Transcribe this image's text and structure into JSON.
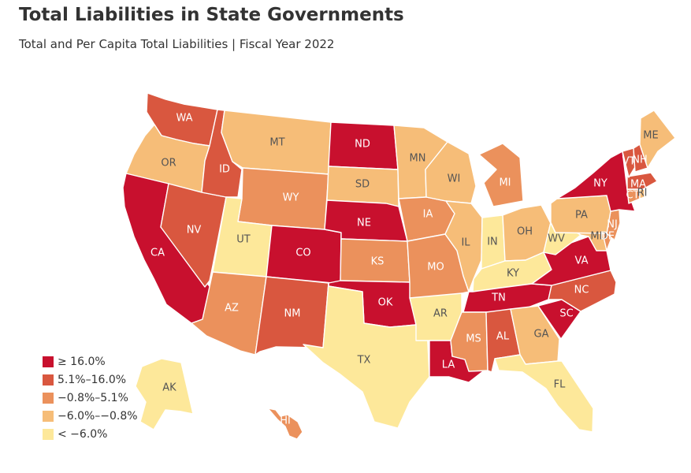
{
  "header": {
    "title": "Total Liabilities in State Governments",
    "subtitle": "Total and Per Capita Total Liabilities | Fiscal Year 2022"
  },
  "legend": [
    {
      "label": "≥ 16.0%",
      "color": "#c8102e"
    },
    {
      "label": "5.1%–16.0%",
      "color": "#d9573f"
    },
    {
      "label": "−0.8%–5.1%",
      "color": "#eb915c"
    },
    {
      "label": "−6.0%–−0.8%",
      "color": "#f6bd78"
    },
    {
      "label": "< −6.0%",
      "color": "#fde89a"
    }
  ],
  "states": [
    {
      "abbr": "WA",
      "bin": 1
    },
    {
      "abbr": "OR",
      "bin": 3
    },
    {
      "abbr": "CA",
      "bin": 0
    },
    {
      "abbr": "NV",
      "bin": 1
    },
    {
      "abbr": "ID",
      "bin": 1
    },
    {
      "abbr": "MT",
      "bin": 3
    },
    {
      "abbr": "WY",
      "bin": 2
    },
    {
      "abbr": "UT",
      "bin": 4
    },
    {
      "abbr": "AZ",
      "bin": 2
    },
    {
      "abbr": "CO",
      "bin": 0
    },
    {
      "abbr": "NM",
      "bin": 1
    },
    {
      "abbr": "ND",
      "bin": 0
    },
    {
      "abbr": "SD",
      "bin": 3
    },
    {
      "abbr": "NE",
      "bin": 0
    },
    {
      "abbr": "KS",
      "bin": 2
    },
    {
      "abbr": "OK",
      "bin": 0
    },
    {
      "abbr": "TX",
      "bin": 4
    },
    {
      "abbr": "MN",
      "bin": 3
    },
    {
      "abbr": "IA",
      "bin": 2
    },
    {
      "abbr": "MO",
      "bin": 2
    },
    {
      "abbr": "AR",
      "bin": 4
    },
    {
      "abbr": "LA",
      "bin": 0
    },
    {
      "abbr": "WI",
      "bin": 3
    },
    {
      "abbr": "IL",
      "bin": 3
    },
    {
      "abbr": "MI",
      "bin": 2
    },
    {
      "abbr": "IN",
      "bin": 4
    },
    {
      "abbr": "OH",
      "bin": 3
    },
    {
      "abbr": "KY",
      "bin": 4
    },
    {
      "abbr": "TN",
      "bin": 0
    },
    {
      "abbr": "MS",
      "bin": 2
    },
    {
      "abbr": "AL",
      "bin": 1
    },
    {
      "abbr": "GA",
      "bin": 3
    },
    {
      "abbr": "FL",
      "bin": 4
    },
    {
      "abbr": "SC",
      "bin": 0
    },
    {
      "abbr": "NC",
      "bin": 1
    },
    {
      "abbr": "VA",
      "bin": 0
    },
    {
      "abbr": "WV",
      "bin": 4
    },
    {
      "abbr": "MD",
      "bin": 3
    },
    {
      "abbr": "DE",
      "bin": 2
    },
    {
      "abbr": "NJ",
      "bin": 2
    },
    {
      "abbr": "PA",
      "bin": 3
    },
    {
      "abbr": "NY",
      "bin": 0
    },
    {
      "abbr": "CT",
      "bin": 2
    },
    {
      "abbr": "RI",
      "bin": 3
    },
    {
      "abbr": "MA",
      "bin": 1
    },
    {
      "abbr": "VT",
      "bin": 1
    },
    {
      "abbr": "NH",
      "bin": 1
    },
    {
      "abbr": "ME",
      "bin": 3
    },
    {
      "abbr": "AK",
      "bin": 4
    },
    {
      "abbr": "HI",
      "bin": 2
    }
  ]
}
